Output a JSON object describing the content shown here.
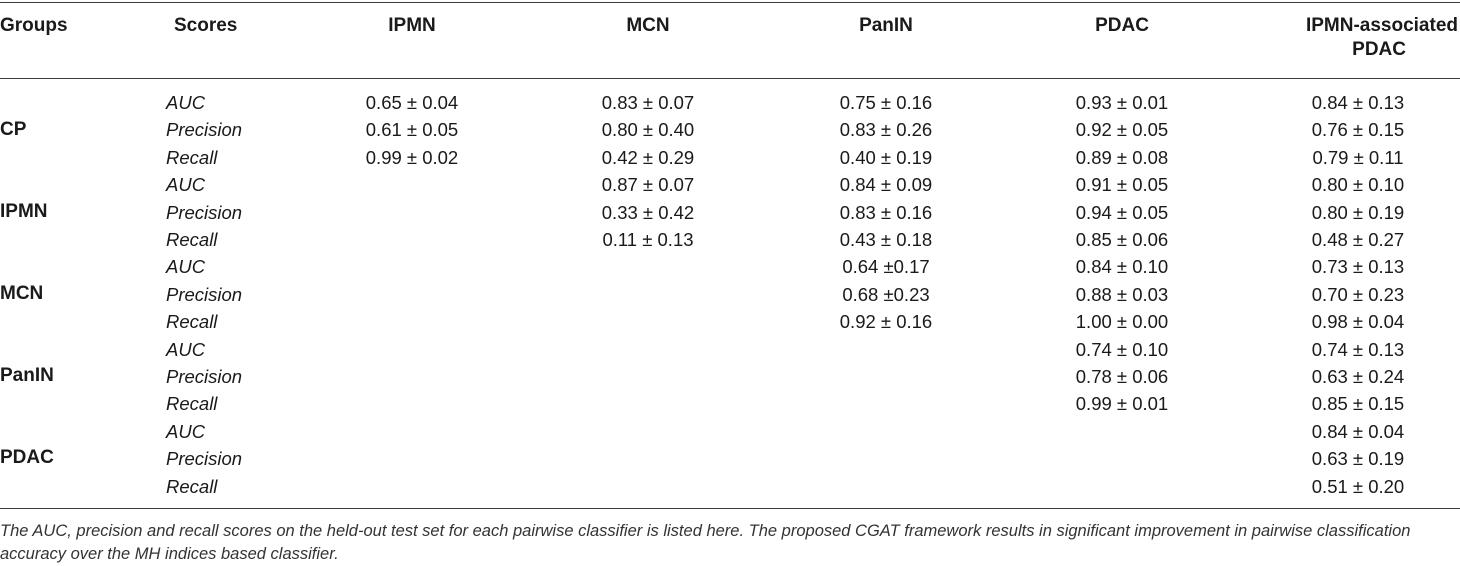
{
  "table": {
    "headers": [
      "Groups",
      "Scores",
      "IPMN",
      "MCN",
      "PanIN",
      "PDAC",
      "IPMN-associated PDAC"
    ],
    "header_last_line1": "IPMN-associated",
    "header_last_line2": "PDAC",
    "groups": [
      "CP",
      "IPMN",
      "MCN",
      "PanIN",
      "PDAC"
    ],
    "rows": [
      {
        "score": "AUC",
        "IPMN": "0.65 ± 0.04",
        "MCN": "0.83 ± 0.07",
        "PanIN": "0.75 ± 0.16",
        "PDAC": "0.93 ± 0.01",
        "IPMN_PDAC": "0.84 ± 0.13"
      },
      {
        "score": "Precision",
        "IPMN": "0.61 ± 0.05",
        "MCN": "0.80 ± 0.40",
        "PanIN": "0.83 ± 0.26",
        "PDAC": "0.92 ± 0.05",
        "IPMN_PDAC": "0.76 ± 0.15"
      },
      {
        "score": "Recall",
        "IPMN": "0.99 ± 0.02",
        "MCN": "0.42 ± 0.29",
        "PanIN": "0.40 ± 0.19",
        "PDAC": "0.89 ± 0.08",
        "IPMN_PDAC": "0.79 ± 0.11"
      },
      {
        "score": "AUC",
        "IPMN": "",
        "MCN": "0.87 ± 0.07",
        "PanIN": "0.84 ± 0.09",
        "PDAC": "0.91 ± 0.05",
        "IPMN_PDAC": "0.80 ± 0.10"
      },
      {
        "score": "Precision",
        "IPMN": "",
        "MCN": "0.33 ± 0.42",
        "PanIN": "0.83 ± 0.16",
        "PDAC": "0.94 ± 0.05",
        "IPMN_PDAC": "0.80 ± 0.19"
      },
      {
        "score": "Recall",
        "IPMN": "",
        "MCN": "0.11 ± 0.13",
        "PanIN": "0.43 ± 0.18",
        "PDAC": "0.85 ± 0.06",
        "IPMN_PDAC": "0.48 ± 0.27"
      },
      {
        "score": "AUC",
        "IPMN": "",
        "MCN": "",
        "PanIN": "0.64 ±0.17",
        "PDAC": "0.84 ± 0.10",
        "IPMN_PDAC": "0.73 ± 0.13"
      },
      {
        "score": "Precision",
        "IPMN": "",
        "MCN": "",
        "PanIN": "0.68 ±0.23",
        "PDAC": "0.88 ± 0.03",
        "IPMN_PDAC": "0.70 ± 0.23"
      },
      {
        "score": "Recall",
        "IPMN": "",
        "MCN": "",
        "PanIN": "0.92 ± 0.16",
        "PDAC": "1.00 ± 0.00",
        "IPMN_PDAC": "0.98 ± 0.04"
      },
      {
        "score": "AUC",
        "IPMN": "",
        "MCN": "",
        "PanIN": "",
        "PDAC": "0.74 ± 0.10",
        "IPMN_PDAC": "0.74 ± 0.13"
      },
      {
        "score": "Precision",
        "IPMN": "",
        "MCN": "",
        "PanIN": "",
        "PDAC": "0.78 ± 0.06",
        "IPMN_PDAC": "0.63 ± 0.24"
      },
      {
        "score": "Recall",
        "IPMN": "",
        "MCN": "",
        "PanIN": "",
        "PDAC": "0.99 ± 0.01",
        "IPMN_PDAC": "0.85 ± 0.15"
      },
      {
        "score": "AUC",
        "IPMN": "",
        "MCN": "",
        "PanIN": "",
        "PDAC": "",
        "IPMN_PDAC": "0.84 ± 0.04"
      },
      {
        "score": "Precision",
        "IPMN": "",
        "MCN": "",
        "PanIN": "",
        "PDAC": "",
        "IPMN_PDAC": "0.63 ± 0.19"
      },
      {
        "score": "Recall",
        "IPMN": "",
        "MCN": "",
        "PanIN": "",
        "PDAC": "",
        "IPMN_PDAC": "0.51 ± 0.20"
      }
    ]
  },
  "caption": "The AUC, precision and recall scores on the held-out test set for each pairwise classifier is listed here. The proposed CGAT framework results in significant improvement in pairwise classification accuracy over the MH indices based classifier."
}
